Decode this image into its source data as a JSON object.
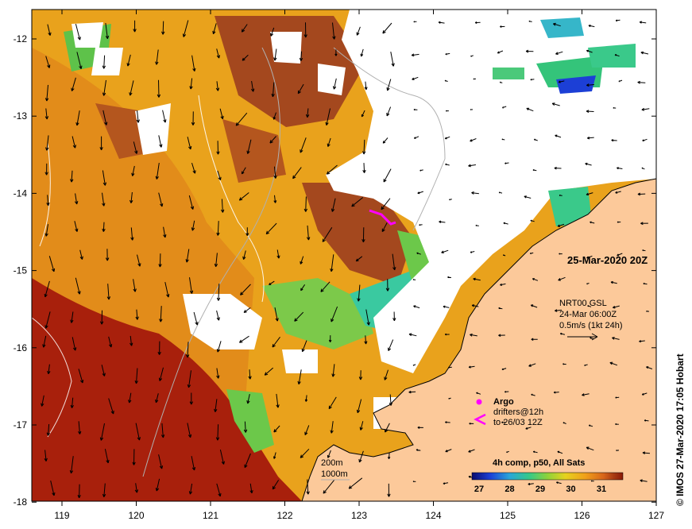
{
  "map": {
    "lon_ticks": [
      "119",
      "120",
      "121",
      "122",
      "123",
      "124",
      "125",
      "126",
      "127"
    ],
    "lat_ticks": [
      "-12",
      "-13",
      "-14",
      "-15",
      "-16",
      "-17",
      "-18"
    ],
    "date_label": "25-Mar-2020 20Z",
    "current_note": {
      "line1": "NRT00 GSL",
      "line2": "24-Mar 06:00Z",
      "line3": "0.5m/s (1kt 24h)"
    },
    "legend": {
      "argo": "Argo",
      "drifters_line1": "drifters@12h",
      "drifters_line2": "to 26/03 12Z"
    },
    "isobaths": {
      "shallow": "200m",
      "deep": "1000m"
    },
    "colorbar": {
      "title": "4h comp, p50, All Sats",
      "ticks": [
        "27",
        "28",
        "29",
        "30",
        "31"
      ],
      "colors": [
        "#0b0b6e",
        "#1c3fd6",
        "#2aa6d8",
        "#36c988",
        "#8ed23a",
        "#e6d21e",
        "#f0a01a",
        "#d8661a",
        "#a83a12",
        "#8a1a08"
      ]
    },
    "credit": "© IMOS 27-Mar-2020 17:05 Hobart",
    "land_color": "#fcc99a",
    "cloud_color": "#ffffff"
  }
}
